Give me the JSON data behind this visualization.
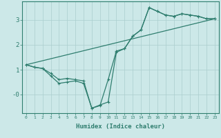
{
  "xlabel": "Humidex (Indice chaleur)",
  "bg_color": "#cce8e8",
  "line_color": "#2e7d6e",
  "grid_color": "#aacece",
  "xlim": [
    -0.5,
    23.5
  ],
  "ylim": [
    -0.75,
    3.75
  ],
  "yticks": [
    0,
    1,
    2,
    3
  ],
  "ytick_labels": [
    "-0",
    "1",
    "2",
    "3"
  ],
  "line1_x": [
    0,
    1,
    2,
    3,
    4,
    5,
    6,
    7,
    8,
    9,
    10,
    11,
    12,
    13,
    14,
    15,
    16,
    17,
    18,
    19,
    20,
    21,
    22,
    23
  ],
  "line1_y": [
    1.2,
    1.1,
    1.05,
    0.85,
    0.6,
    0.65,
    0.6,
    0.55,
    -0.55,
    -0.45,
    0.6,
    1.75,
    1.85,
    2.35,
    2.6,
    3.5,
    3.35,
    3.2,
    3.15,
    3.25,
    3.2,
    3.15,
    3.05,
    3.05
  ],
  "line2_x": [
    0,
    1,
    2,
    3,
    4,
    5,
    6,
    7,
    8,
    9,
    10,
    11,
    12,
    13,
    14,
    15,
    16,
    17,
    18,
    19,
    20,
    21,
    22,
    23
  ],
  "line2_y": [
    1.2,
    1.1,
    1.05,
    0.75,
    0.45,
    0.5,
    0.55,
    0.45,
    -0.55,
    -0.42,
    -0.3,
    1.7,
    1.85,
    2.35,
    2.6,
    3.5,
    3.35,
    3.2,
    3.15,
    3.25,
    3.2,
    3.15,
    3.05,
    3.05
  ],
  "line3_x": [
    0,
    23
  ],
  "line3_y": [
    1.2,
    3.05
  ],
  "marker_size": 3.5,
  "linewidth": 0.9,
  "font_size": 6.5
}
